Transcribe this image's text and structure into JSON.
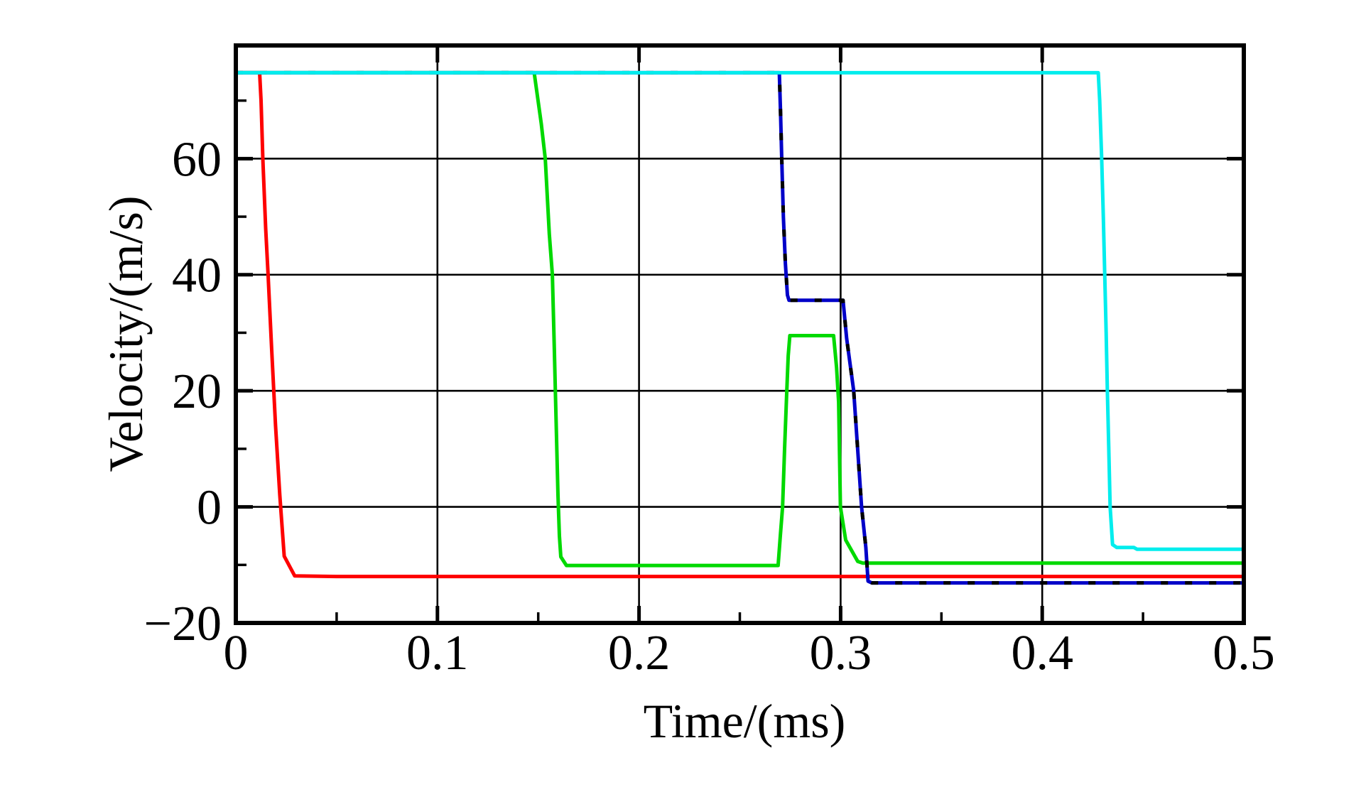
{
  "figure": {
    "background_color": "#ffffff",
    "frame_color": "#000000",
    "grid_color": "#000000"
  },
  "chart_data": {
    "type": "line",
    "title": "",
    "xlabel": "Time/(ms)",
    "ylabel": "Velocity/(m/s)",
    "xlim": [
      0,
      0.5
    ],
    "ylim": [
      -20,
      79.5
    ],
    "x_ticks": [
      0,
      0.1,
      0.2,
      0.3,
      0.4,
      0.5
    ],
    "x_tick_labels": [
      "0",
      "0.1",
      "0.2",
      "0.3",
      "0.4",
      "0.5"
    ],
    "x_minor_ticks": [
      0.05,
      0.15,
      0.25,
      0.35,
      0.45
    ],
    "y_ticks": [
      -20,
      0,
      20,
      40,
      60
    ],
    "y_tick_labels": [
      "−20",
      "0",
      "20",
      "40",
      "60"
    ],
    "y_minor_ticks": [
      -10,
      10,
      30,
      50,
      70
    ],
    "grid": true,
    "legend_position": "none",
    "initial_plateau_velocity": 74.8,
    "series": [
      {
        "name": "red",
        "color": "#fe0000",
        "final_velocity": -12.0,
        "drop_time": 0.012,
        "points": [
          [
            0,
            74.8
          ],
          [
            0.0118,
            74.8
          ],
          [
            0.0125,
            70
          ],
          [
            0.0134,
            60
          ],
          [
            0.0148,
            48
          ],
          [
            0.016,
            40
          ],
          [
            0.0178,
            27
          ],
          [
            0.0197,
            14
          ],
          [
            0.0218,
            2
          ],
          [
            0.024,
            -8.5
          ],
          [
            0.0292,
            -11.9
          ],
          [
            0.05,
            -12
          ],
          [
            0.5,
            -12
          ]
        ]
      },
      {
        "name": "green",
        "color": "#00d900",
        "final_velocity": -9.7,
        "drop_time": 0.148,
        "bump_peak_velocity": 29.5,
        "points": [
          [
            0,
            74.8
          ],
          [
            0.148,
            74.8
          ],
          [
            0.1515,
            66
          ],
          [
            0.1535,
            60
          ],
          [
            0.1555,
            47
          ],
          [
            0.157,
            40
          ],
          [
            0.158,
            27
          ],
          [
            0.1585,
            20
          ],
          [
            0.1598,
            2
          ],
          [
            0.1605,
            -5
          ],
          [
            0.1612,
            -8.6
          ],
          [
            0.164,
            -10.1
          ],
          [
            0.269,
            -10.1
          ],
          [
            0.2701,
            -5
          ],
          [
            0.2712,
            0
          ],
          [
            0.2722,
            10
          ],
          [
            0.2732,
            19
          ],
          [
            0.274,
            26
          ],
          [
            0.2748,
            29.5
          ],
          [
            0.2965,
            29.5
          ],
          [
            0.298,
            24
          ],
          [
            0.299,
            18
          ],
          [
            0.2999,
            0
          ],
          [
            0.3025,
            -5.7
          ],
          [
            0.3085,
            -9.4
          ],
          [
            0.311,
            -9.7
          ],
          [
            0.5,
            -9.7
          ]
        ]
      },
      {
        "name": "blue",
        "color": "#0000c8",
        "dash_overlay": "#000000",
        "final_velocity": -13.1,
        "drop_time": 0.27,
        "plateau_velocity": 35.6,
        "points": [
          [
            0,
            74.8
          ],
          [
            0.2696,
            74.8
          ],
          [
            0.2702,
            68
          ],
          [
            0.2708,
            60
          ],
          [
            0.2716,
            50
          ],
          [
            0.2726,
            42
          ],
          [
            0.2736,
            36.5
          ],
          [
            0.2744,
            35.6
          ],
          [
            0.3012,
            35.6
          ],
          [
            0.303,
            29
          ],
          [
            0.3065,
            20
          ],
          [
            0.3104,
            0
          ],
          [
            0.3125,
            -7
          ],
          [
            0.3136,
            -12.8
          ],
          [
            0.3155,
            -13.1
          ],
          [
            0.5,
            -13.1
          ]
        ]
      },
      {
        "name": "cyan",
        "color": "#00eded",
        "final_velocity": -7.3,
        "drop_time": 0.428,
        "points": [
          [
            0,
            74.8
          ],
          [
            0.4278,
            74.8
          ],
          [
            0.4285,
            70
          ],
          [
            0.4295,
            60
          ],
          [
            0.4303,
            50
          ],
          [
            0.431,
            40
          ],
          [
            0.4317,
            30
          ],
          [
            0.4323,
            20
          ],
          [
            0.433,
            10
          ],
          [
            0.4337,
            0
          ],
          [
            0.4349,
            -6.5
          ],
          [
            0.437,
            -7
          ],
          [
            0.4455,
            -7
          ],
          [
            0.447,
            -7.3
          ],
          [
            0.5,
            -7.3
          ]
        ]
      }
    ]
  }
}
